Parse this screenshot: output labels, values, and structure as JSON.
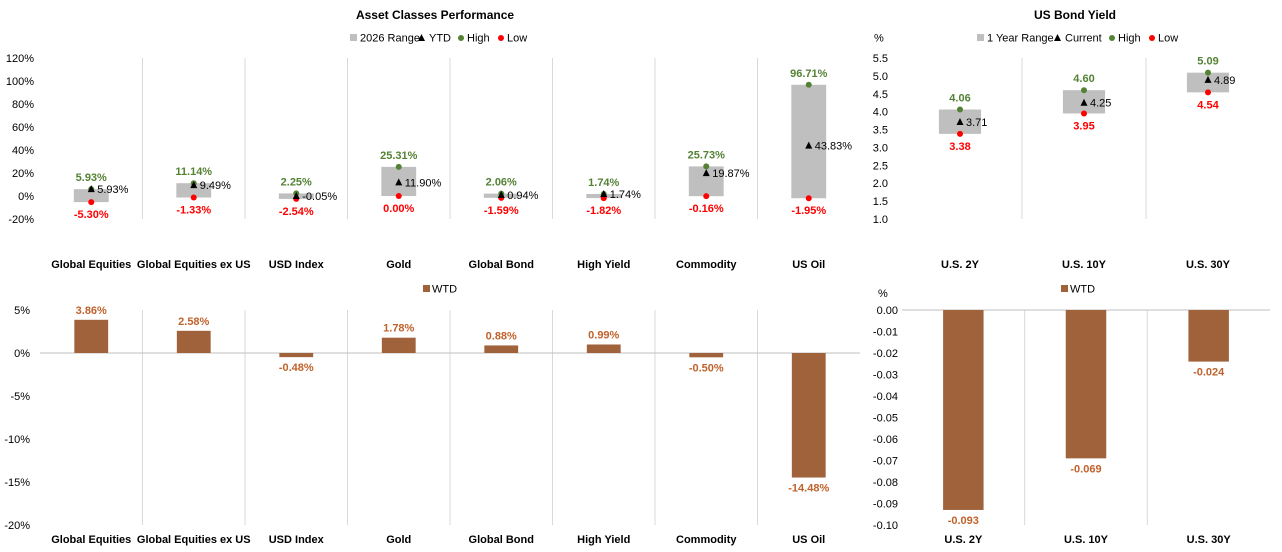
{
  "chart_data": [
    {
      "id": "asset",
      "type": "range",
      "title": "Asset Classes Performance",
      "legend": {
        "range": "2026 Range",
        "mid": "YTD",
        "high": "High",
        "low": "Low"
      },
      "categories": [
        "Global Equities",
        "Global Equities ex US",
        "USD Index",
        "Gold",
        "Global Bond",
        "High Yield",
        "Commodity",
        "US Oil"
      ],
      "high": [
        5.93,
        11.14,
        2.25,
        25.31,
        2.06,
        1.74,
        25.73,
        96.71
      ],
      "mid": [
        5.93,
        9.49,
        -0.05,
        11.9,
        0.94,
        1.74,
        19.87,
        43.83
      ],
      "low": [
        -5.3,
        -1.33,
        -2.54,
        0.0,
        -1.59,
        -1.82,
        -0.16,
        -1.95
      ],
      "high_labels": [
        "5.93%",
        "11.14%",
        "2.25%",
        "25.31%",
        "2.06%",
        "1.74%",
        "25.73%",
        "96.71%"
      ],
      "mid_labels": [
        "5.93%",
        "9.49%",
        "-0.05%",
        "11.90%",
        "0.94%",
        "1.74%",
        "19.87%",
        "43.83%"
      ],
      "low_labels": [
        "-5.30%",
        "-1.33%",
        "-2.54%",
        "0.00%",
        "-1.59%",
        "-1.82%",
        "-0.16%",
        "-1.95%"
      ],
      "ylim": [
        -20,
        120
      ],
      "yticks": [
        -20,
        0,
        20,
        40,
        60,
        80,
        100,
        120
      ],
      "ytick_labels": [
        "-20%",
        "0%",
        "20%",
        "40%",
        "60%",
        "80%",
        "100%",
        "120%"
      ],
      "ylabel": "",
      "grid": "vertical separators"
    },
    {
      "id": "bond",
      "type": "range",
      "title": "US Bond Yield",
      "unit": "%",
      "legend": {
        "range": "1 Year Range",
        "mid": "Current",
        "high": "High",
        "low": "Low"
      },
      "categories": [
        "U.S. 2Y",
        "U.S. 10Y",
        "U.S. 30Y"
      ],
      "high": [
        4.06,
        4.6,
        5.09
      ],
      "mid": [
        3.71,
        4.25,
        4.89
      ],
      "low": [
        3.38,
        3.95,
        4.54
      ],
      "high_labels": [
        "4.06",
        "4.60",
        "5.09"
      ],
      "mid_labels": [
        "3.71",
        "4.25",
        "4.89"
      ],
      "low_labels": [
        "3.38",
        "3.95",
        "4.54"
      ],
      "ylim": [
        1.0,
        5.5
      ],
      "yticks": [
        1.0,
        1.5,
        2.0,
        2.5,
        3.0,
        3.5,
        4.0,
        4.5,
        5.0,
        5.5
      ],
      "ytick_labels": [
        "1.0",
        "1.5",
        "2.0",
        "2.5",
        "3.0",
        "3.5",
        "4.0",
        "4.5",
        "5.0",
        "5.5"
      ],
      "grid": "vertical separators"
    },
    {
      "id": "wtd",
      "type": "bar",
      "legend": {
        "series": "WTD"
      },
      "categories": [
        "Global Equities",
        "Global Equities ex US",
        "USD Index",
        "Gold",
        "Global Bond",
        "High Yield",
        "Commodity",
        "US Oil"
      ],
      "values": [
        3.86,
        2.58,
        -0.48,
        1.78,
        0.88,
        0.99,
        -0.5,
        -14.48
      ],
      "value_labels": [
        "3.86%",
        "2.58%",
        "-0.48%",
        "1.78%",
        "0.88%",
        "0.99%",
        "-0.50%",
        "-14.48%"
      ],
      "ylim": [
        -20,
        5
      ],
      "yticks": [
        -20,
        -15,
        -10,
        -5,
        0,
        5
      ],
      "ytick_labels": [
        "-20%",
        "-15%",
        "-10%",
        "-5%",
        "0%",
        "5%"
      ],
      "grid": "vertical separators"
    },
    {
      "id": "bondwtd",
      "type": "bar",
      "unit": "%",
      "legend": {
        "series": "WTD"
      },
      "categories": [
        "U.S. 2Y",
        "U.S. 10Y",
        "U.S. 30Y"
      ],
      "values": [
        -0.093,
        -0.069,
        -0.024
      ],
      "value_labels": [
        "-0.093",
        "-0.069",
        "-0.024"
      ],
      "ylim": [
        -0.1,
        0.0
      ],
      "yticks": [
        -0.1,
        -0.09,
        -0.08,
        -0.07,
        -0.06,
        -0.05,
        -0.04,
        -0.03,
        -0.02,
        -0.01,
        0.0
      ],
      "ytick_labels": [
        "-0.10",
        "-0.09",
        "-0.08",
        "-0.07",
        "-0.06",
        "-0.05",
        "-0.04",
        "-0.03",
        "-0.02",
        "-0.01",
        "0.00"
      ],
      "grid": "vertical separators"
    }
  ],
  "colors": {
    "range": "#bfbfbf",
    "high": "#548235",
    "low": "#ff0000",
    "mid": "#000000",
    "bar": "#a0623a",
    "bar_label": "#c0622b",
    "separator": "#d9d9d9"
  }
}
